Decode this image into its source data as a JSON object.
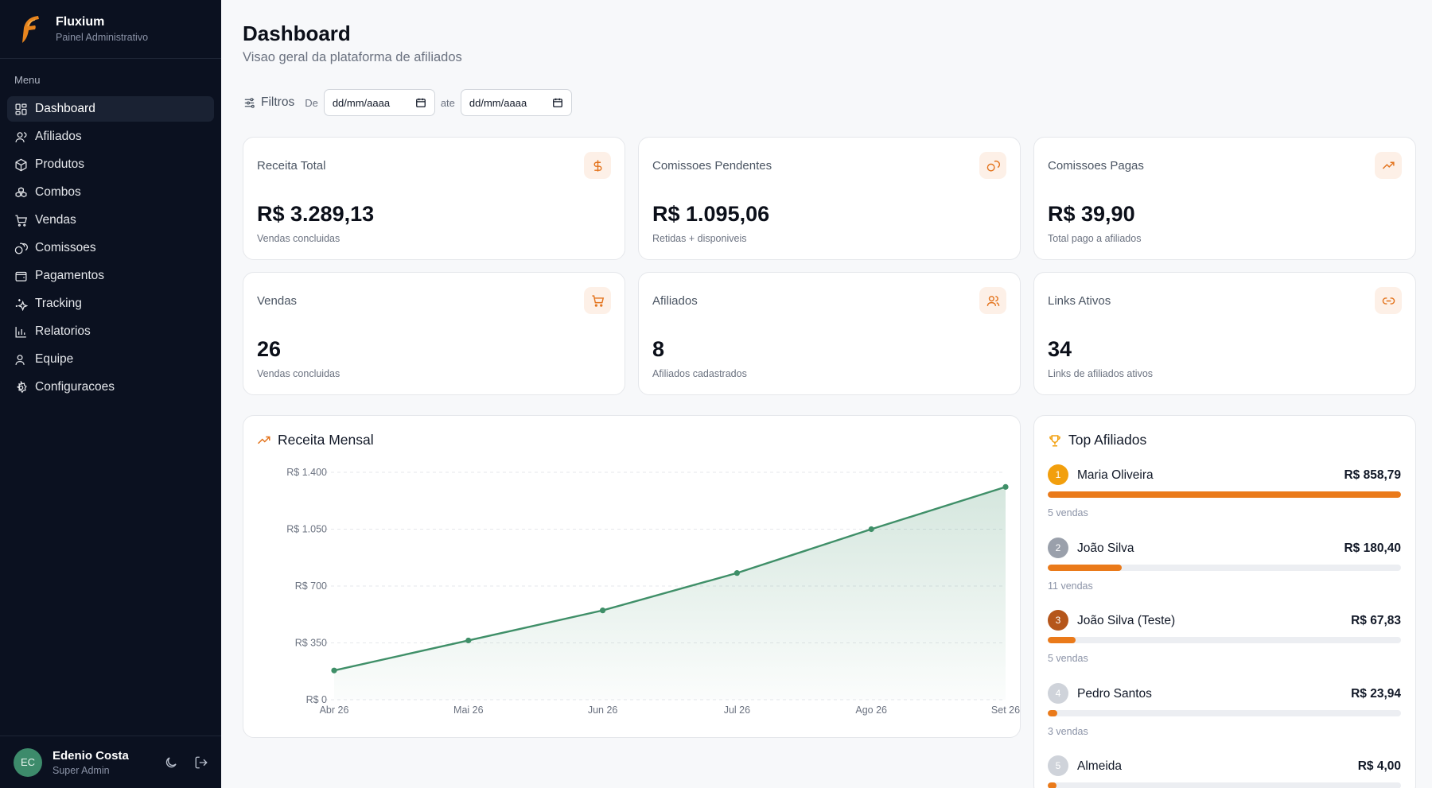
{
  "brand": {
    "name": "Fluxium",
    "subtitle": "Painel Administrativo"
  },
  "menu_label": "Menu",
  "nav": [
    {
      "label": "Dashboard",
      "icon": "grid-icon",
      "active": true
    },
    {
      "label": "Afiliados",
      "icon": "user-icon"
    },
    {
      "label": "Produtos",
      "icon": "box-icon"
    },
    {
      "label": "Combos",
      "icon": "boxes-icon"
    },
    {
      "label": "Vendas",
      "icon": "cart-icon"
    },
    {
      "label": "Comissoes",
      "icon": "coins-icon"
    },
    {
      "label": "Pagamentos",
      "icon": "wallet-icon"
    },
    {
      "label": "Tracking",
      "icon": "sparkles-icon"
    },
    {
      "label": "Relatorios",
      "icon": "bar-chart-icon"
    },
    {
      "label": "Equipe",
      "icon": "team-icon"
    },
    {
      "label": "Configuracoes",
      "icon": "gear-icon"
    }
  ],
  "user": {
    "initials": "EC",
    "name": "Edenio Costa",
    "role": "Super Admin"
  },
  "header": {
    "title": "Dashboard",
    "subtitle": "Visao geral da plataforma de afiliados"
  },
  "filters": {
    "label": "Filtros",
    "from_label": "De",
    "to_label": "ate",
    "from_placeholder": "dd/mm/aaaa",
    "to_placeholder": "dd/mm/aaaa"
  },
  "stats": [
    {
      "title": "Receita Total",
      "value": "R$ 3.289,13",
      "desc": "Vendas concluidas",
      "icon": "dollar-icon"
    },
    {
      "title": "Comissoes Pendentes",
      "value": "R$ 1.095,06",
      "desc": "Retidas + disponiveis",
      "icon": "coins-icon"
    },
    {
      "title": "Comissoes Pagas",
      "value": "R$ 39,90",
      "desc": "Total pago a afiliados",
      "icon": "trending-up-icon"
    },
    {
      "title": "Vendas",
      "value": "26",
      "desc": "Vendas concluidas",
      "icon": "cart-icon"
    },
    {
      "title": "Afiliados",
      "value": "8",
      "desc": "Afiliados cadastrados",
      "icon": "users-icon"
    },
    {
      "title": "Links Ativos",
      "value": "34",
      "desc": "Links de afiliados ativos",
      "icon": "link-icon"
    }
  ],
  "chart_title": "Receita Mensal",
  "chart_data": {
    "type": "area",
    "title": "Receita Mensal",
    "categories": [
      "Abr 26",
      "Mai 26",
      "Jun 26",
      "Jul 26",
      "Ago 26",
      "Set 26"
    ],
    "values": [
      180,
      365,
      550,
      780,
      1050,
      1310
    ],
    "ylim": [
      0,
      1400
    ],
    "yticks": [
      0,
      350,
      700,
      1050,
      1400
    ],
    "ytick_labels": [
      "R$ 0",
      "R$ 350",
      "R$ 700",
      "R$ 1.050",
      "R$ 1.400"
    ],
    "grid": true,
    "color": "#3f8f68"
  },
  "top_title": "Top Afiliados",
  "top_affiliates": [
    {
      "rank": "1",
      "name": "Maria Oliveira",
      "amount": "R$ 858,79",
      "sales": "5 vendas",
      "share": 1.0,
      "color": "#f29f0d"
    },
    {
      "rank": "2",
      "name": "João Silva",
      "amount": "R$ 180,40",
      "sales": "11 vendas",
      "share": 0.21,
      "color": "#9aa0ab"
    },
    {
      "rank": "3",
      "name": "João Silva (Teste)",
      "amount": "R$ 67,83",
      "sales": "5 vendas",
      "share": 0.079,
      "color": "#b5561b"
    },
    {
      "rank": "4",
      "name": "Pedro Santos",
      "amount": "R$ 23,94",
      "sales": "3 vendas",
      "share": 0.028,
      "color": "#cfd3da"
    },
    {
      "rank": "5",
      "name": "Almeida",
      "amount": "R$ 4,00",
      "sales": "",
      "share": 0.005,
      "color": "#cfd3da"
    }
  ]
}
